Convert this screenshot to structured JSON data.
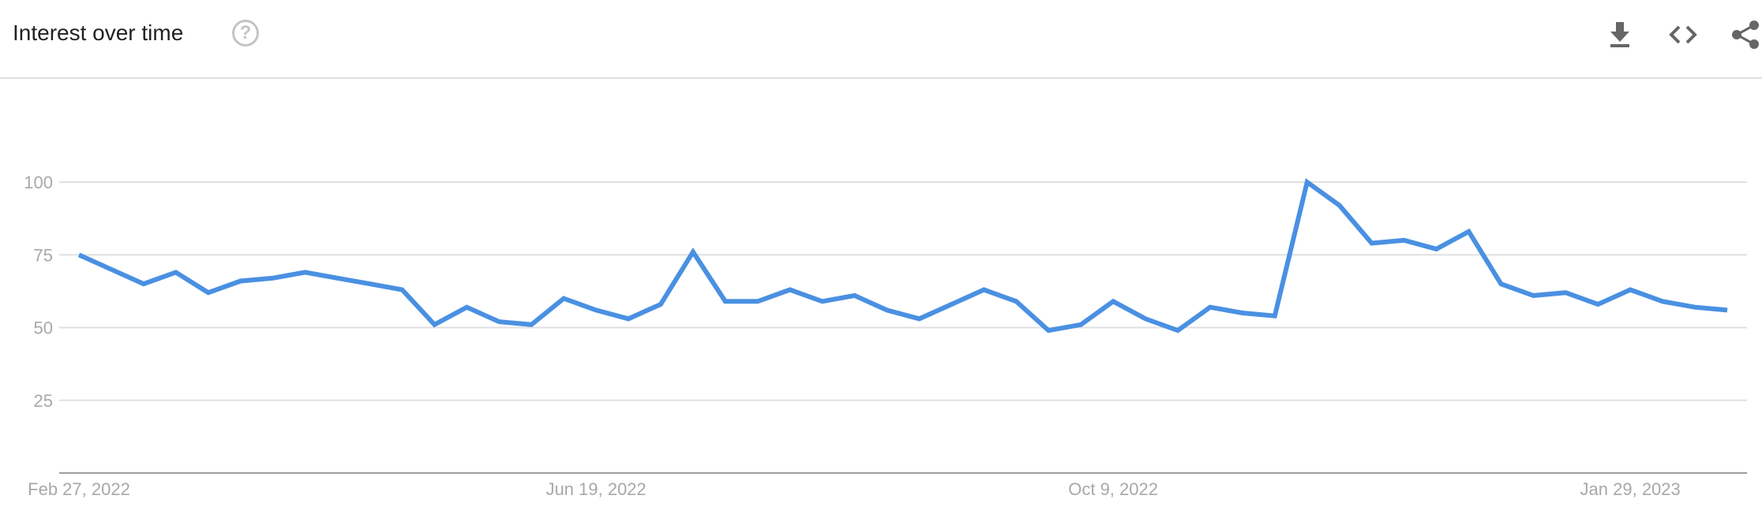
{
  "header": {
    "title": "Interest over time",
    "help_icon": "help-circle-icon",
    "actions": [
      {
        "name": "download-icon"
      },
      {
        "name": "embed-code-icon"
      },
      {
        "name": "share-icon"
      }
    ]
  },
  "chart_data": {
    "type": "line",
    "title": "",
    "xlabel": "",
    "ylabel": "",
    "ylim": [
      0,
      100
    ],
    "yticks": [
      "100",
      "75",
      "50",
      "25"
    ],
    "ytick_values": [
      100,
      75,
      50,
      25
    ],
    "xtick_labels": [
      "Feb 27, 2022",
      "Jun 19, 2022",
      "Oct 9, 2022",
      "Jan 29, 2023"
    ],
    "xtick_dates": [
      "2022-02-27",
      "2022-06-19",
      "2022-10-09",
      "2023-01-29"
    ],
    "grid": true,
    "legend": "none",
    "line_color": "#4a90e2",
    "x": [
      "2022-02-27",
      "2022-03-06",
      "2022-03-13",
      "2022-03-20",
      "2022-03-27",
      "2022-04-03",
      "2022-04-10",
      "2022-04-17",
      "2022-04-24",
      "2022-05-01",
      "2022-05-08",
      "2022-05-15",
      "2022-05-22",
      "2022-05-29",
      "2022-06-05",
      "2022-06-12",
      "2022-06-19",
      "2022-06-26",
      "2022-07-03",
      "2022-07-10",
      "2022-07-17",
      "2022-07-24",
      "2022-07-31",
      "2022-08-07",
      "2022-08-14",
      "2022-08-21",
      "2022-08-28",
      "2022-09-04",
      "2022-09-11",
      "2022-09-18",
      "2022-09-25",
      "2022-10-02",
      "2022-10-09",
      "2022-10-16",
      "2022-10-23",
      "2022-10-30",
      "2022-11-06",
      "2022-11-13",
      "2022-11-20",
      "2022-11-27",
      "2022-12-04",
      "2022-12-11",
      "2022-12-18",
      "2022-12-25",
      "2023-01-01",
      "2023-01-08",
      "2023-01-15",
      "2023-01-22",
      "2023-01-29",
      "2023-02-05",
      "2023-02-12",
      "2023-02-19"
    ],
    "series": [
      {
        "values": [
          75,
          70,
          65,
          69,
          62,
          66,
          67,
          69,
          67,
          65,
          63,
          51,
          57,
          52,
          51,
          60,
          56,
          53,
          58,
          76,
          59,
          59,
          63,
          59,
          61,
          56,
          53,
          58,
          63,
          59,
          49,
          51,
          59,
          53,
          49,
          57,
          55,
          54,
          100,
          92,
          79,
          80,
          77,
          83,
          65,
          61,
          62,
          58,
          63,
          59,
          57,
          56
        ]
      }
    ]
  }
}
